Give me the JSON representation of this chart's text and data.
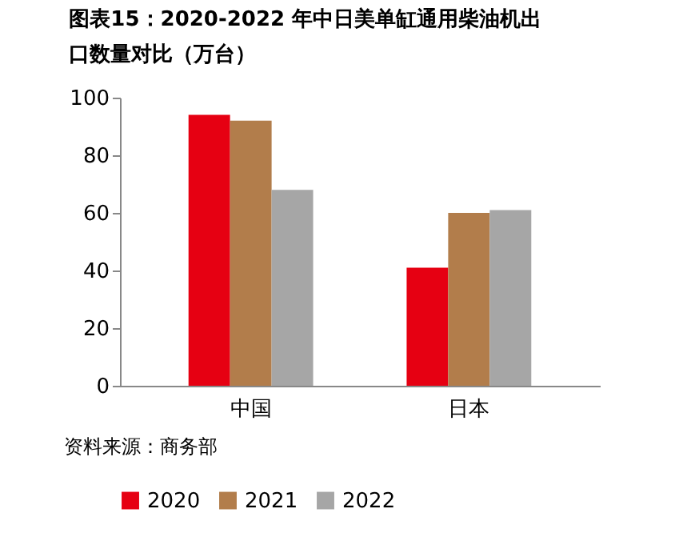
{
  "chart_data": {
    "type": "bar",
    "title": "图表15：2020-2022 年中日美单缸通用柴油机出口数量对比（万台）",
    "categories": [
      "中国",
      "日本"
    ],
    "series": [
      {
        "name": "2020",
        "color": "#e60012",
        "values": [
          94,
          41
        ]
      },
      {
        "name": "2021",
        "color": "#b27d4b",
        "values": [
          92,
          60
        ]
      },
      {
        "name": "2022",
        "color": "#a6a6a6",
        "values": [
          68,
          61
        ]
      }
    ],
    "ylim": [
      0,
      100
    ],
    "yticks": [
      0,
      20,
      40,
      60,
      80,
      100
    ],
    "grid": false,
    "legend": "bottom",
    "annotations": [
      "资料来源：商务部"
    ]
  }
}
